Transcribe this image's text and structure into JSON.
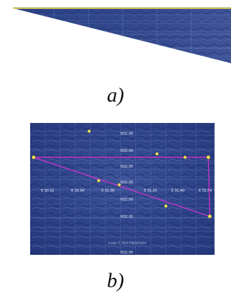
{
  "captions": {
    "a": "a)",
    "b": "b)"
  },
  "colors": {
    "terrain": "#2f4588",
    "terrain_dark": "#1f3270",
    "grid": "#6f86c4",
    "track_line": "#cc33cc",
    "placemark": "#f2e35a",
    "label": "#e8ecf6"
  },
  "panel_b": {
    "grid_labels": {
      "vertical": [
        "N32.00",
        "N32.00",
        "N32.00",
        "N32.00",
        "N32.00",
        "N32.00",
        "N32.00"
      ],
      "horizontal": [
        "E 30.92",
        "E 30.94",
        "E 31.96",
        "E 31.20",
        "E 31.40",
        "E 31.54"
      ]
    },
    "footer_credit": "Image © 2014 DigitalGlobe"
  }
}
